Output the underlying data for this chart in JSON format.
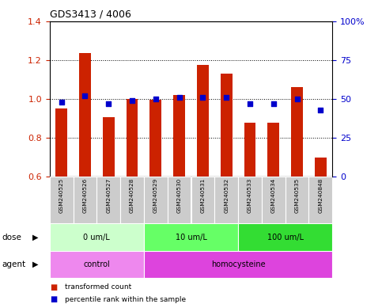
{
  "title": "GDS3413 / 4006",
  "samples": [
    "GSM240525",
    "GSM240526",
    "GSM240527",
    "GSM240528",
    "GSM240529",
    "GSM240530",
    "GSM240531",
    "GSM240532",
    "GSM240533",
    "GSM240534",
    "GSM240535",
    "GSM240848"
  ],
  "red_values": [
    0.95,
    1.235,
    0.905,
    1.0,
    0.995,
    1.02,
    1.175,
    1.13,
    0.875,
    0.875,
    1.06,
    0.695
  ],
  "blue_percentiles": [
    48,
    52,
    47,
    49,
    50,
    51,
    51,
    51,
    47,
    47,
    50,
    43
  ],
  "ylim_left": [
    0.6,
    1.4
  ],
  "ylim_right": [
    0,
    100
  ],
  "yticks_left": [
    0.6,
    0.8,
    1.0,
    1.2,
    1.4
  ],
  "yticks_right": [
    0,
    25,
    50,
    75,
    100
  ],
  "yticklabels_right": [
    "0",
    "25",
    "50",
    "75",
    "100%"
  ],
  "bar_color": "#CC2200",
  "blue_color": "#0000CC",
  "dose_groups": [
    {
      "label": "0 um/L",
      "start": 0,
      "end": 4,
      "color": "#CCFFCC"
    },
    {
      "label": "10 um/L",
      "start": 4,
      "end": 8,
      "color": "#66FF66"
    },
    {
      "label": "100 um/L",
      "start": 8,
      "end": 12,
      "color": "#33DD33"
    }
  ],
  "agent_groups": [
    {
      "label": "control",
      "start": 0,
      "end": 4,
      "color": "#EE88EE"
    },
    {
      "label": "homocysteine",
      "start": 4,
      "end": 12,
      "color": "#DD44DD"
    }
  ],
  "dose_label": "dose",
  "agent_label": "agent",
  "legend_red": "transformed count",
  "legend_blue": "percentile rank within the sample",
  "plot_bg": "#FFFFFF",
  "bar_width": 0.5,
  "sample_bg": "#CCCCCC"
}
